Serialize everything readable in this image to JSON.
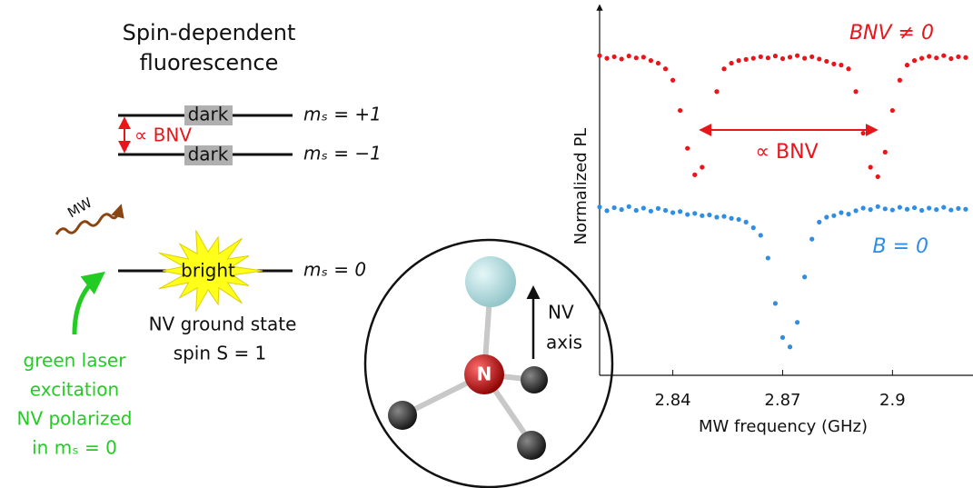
{
  "diagram": {
    "title_lines": [
      "Spin-dependent",
      "fluorescence"
    ],
    "levels": [
      {
        "label": "mₛ = +1",
        "box": "dark"
      },
      {
        "label": "mₛ = −1",
        "box": "dark"
      },
      {
        "label": "mₛ = 0",
        "box": "bright"
      }
    ],
    "splitting": "∝ BNV",
    "mw": "MW",
    "ground_state_lines": [
      "NV ground state",
      "spin S = 1"
    ],
    "laser_lines": [
      "green laser",
      "excitation",
      "NV polarized",
      "in mₛ = 0"
    ],
    "atom": "N",
    "axis_lines": [
      "NV",
      "axis"
    ]
  },
  "chart_data": {
    "type": "scatter",
    "x_label": "MW frequency (GHz)",
    "y_label": "Normalized PL",
    "annotation": "∝ BNV",
    "x": [
      2.82,
      2.822,
      2.824,
      2.826,
      2.828,
      2.83,
      2.832,
      2.834,
      2.836,
      2.838,
      2.84,
      2.842,
      2.844,
      2.846,
      2.848,
      2.85,
      2.852,
      2.854,
      2.856,
      2.858,
      2.86,
      2.862,
      2.864,
      2.866,
      2.868,
      2.87,
      2.872,
      2.874,
      2.876,
      2.878,
      2.88,
      2.882,
      2.884,
      2.886,
      2.888,
      2.89,
      2.892,
      2.894,
      2.896,
      2.898,
      2.9,
      2.902,
      2.904,
      2.906,
      2.908,
      2.91,
      2.912,
      2.914,
      2.916,
      2.918,
      2.92
    ],
    "series": [
      {
        "name": "BNV ≠ 0",
        "color": "#e8161b",
        "values": [
          1.405,
          1.398,
          1.402,
          1.396,
          1.404,
          1.399,
          1.401,
          1.392,
          1.385,
          1.37,
          1.34,
          1.26,
          1.16,
          1.09,
          1.11,
          1.21,
          1.31,
          1.37,
          1.385,
          1.392,
          1.395,
          1.398,
          1.402,
          1.399,
          1.404,
          1.397,
          1.401,
          1.405,
          1.398,
          1.402,
          1.396,
          1.39,
          1.383,
          1.38,
          1.37,
          1.31,
          1.2,
          1.11,
          1.085,
          1.15,
          1.26,
          1.34,
          1.38,
          1.392,
          1.398,
          1.403,
          1.399,
          1.405,
          1.397,
          1.402,
          1.4
        ]
      },
      {
        "name": "B = 0",
        "color": "#2f8de4",
        "values": [
          1.005,
          0.995,
          1.003,
          0.998,
          1.006,
          0.996,
          1.002,
          0.994,
          1.001,
          0.996,
          0.99,
          0.993,
          0.985,
          0.988,
          0.982,
          0.984,
          0.978,
          0.98,
          0.975,
          0.972,
          0.965,
          0.95,
          0.93,
          0.87,
          0.75,
          0.66,
          0.635,
          0.7,
          0.82,
          0.92,
          0.965,
          0.978,
          0.982,
          0.99,
          0.986,
          0.995,
          1.002,
          0.998,
          1.006,
          1.0,
          0.997,
          1.004,
          0.999,
          1.003,
          0.996,
          1.002,
          0.998,
          1.004,
          0.997,
          1.001,
          0.999
        ]
      }
    ],
    "xlim": [
      2.82,
      2.922
    ],
    "ylim": [
      0.56,
      1.54
    ],
    "xticks": [
      2.84,
      2.87,
      2.9
    ]
  }
}
